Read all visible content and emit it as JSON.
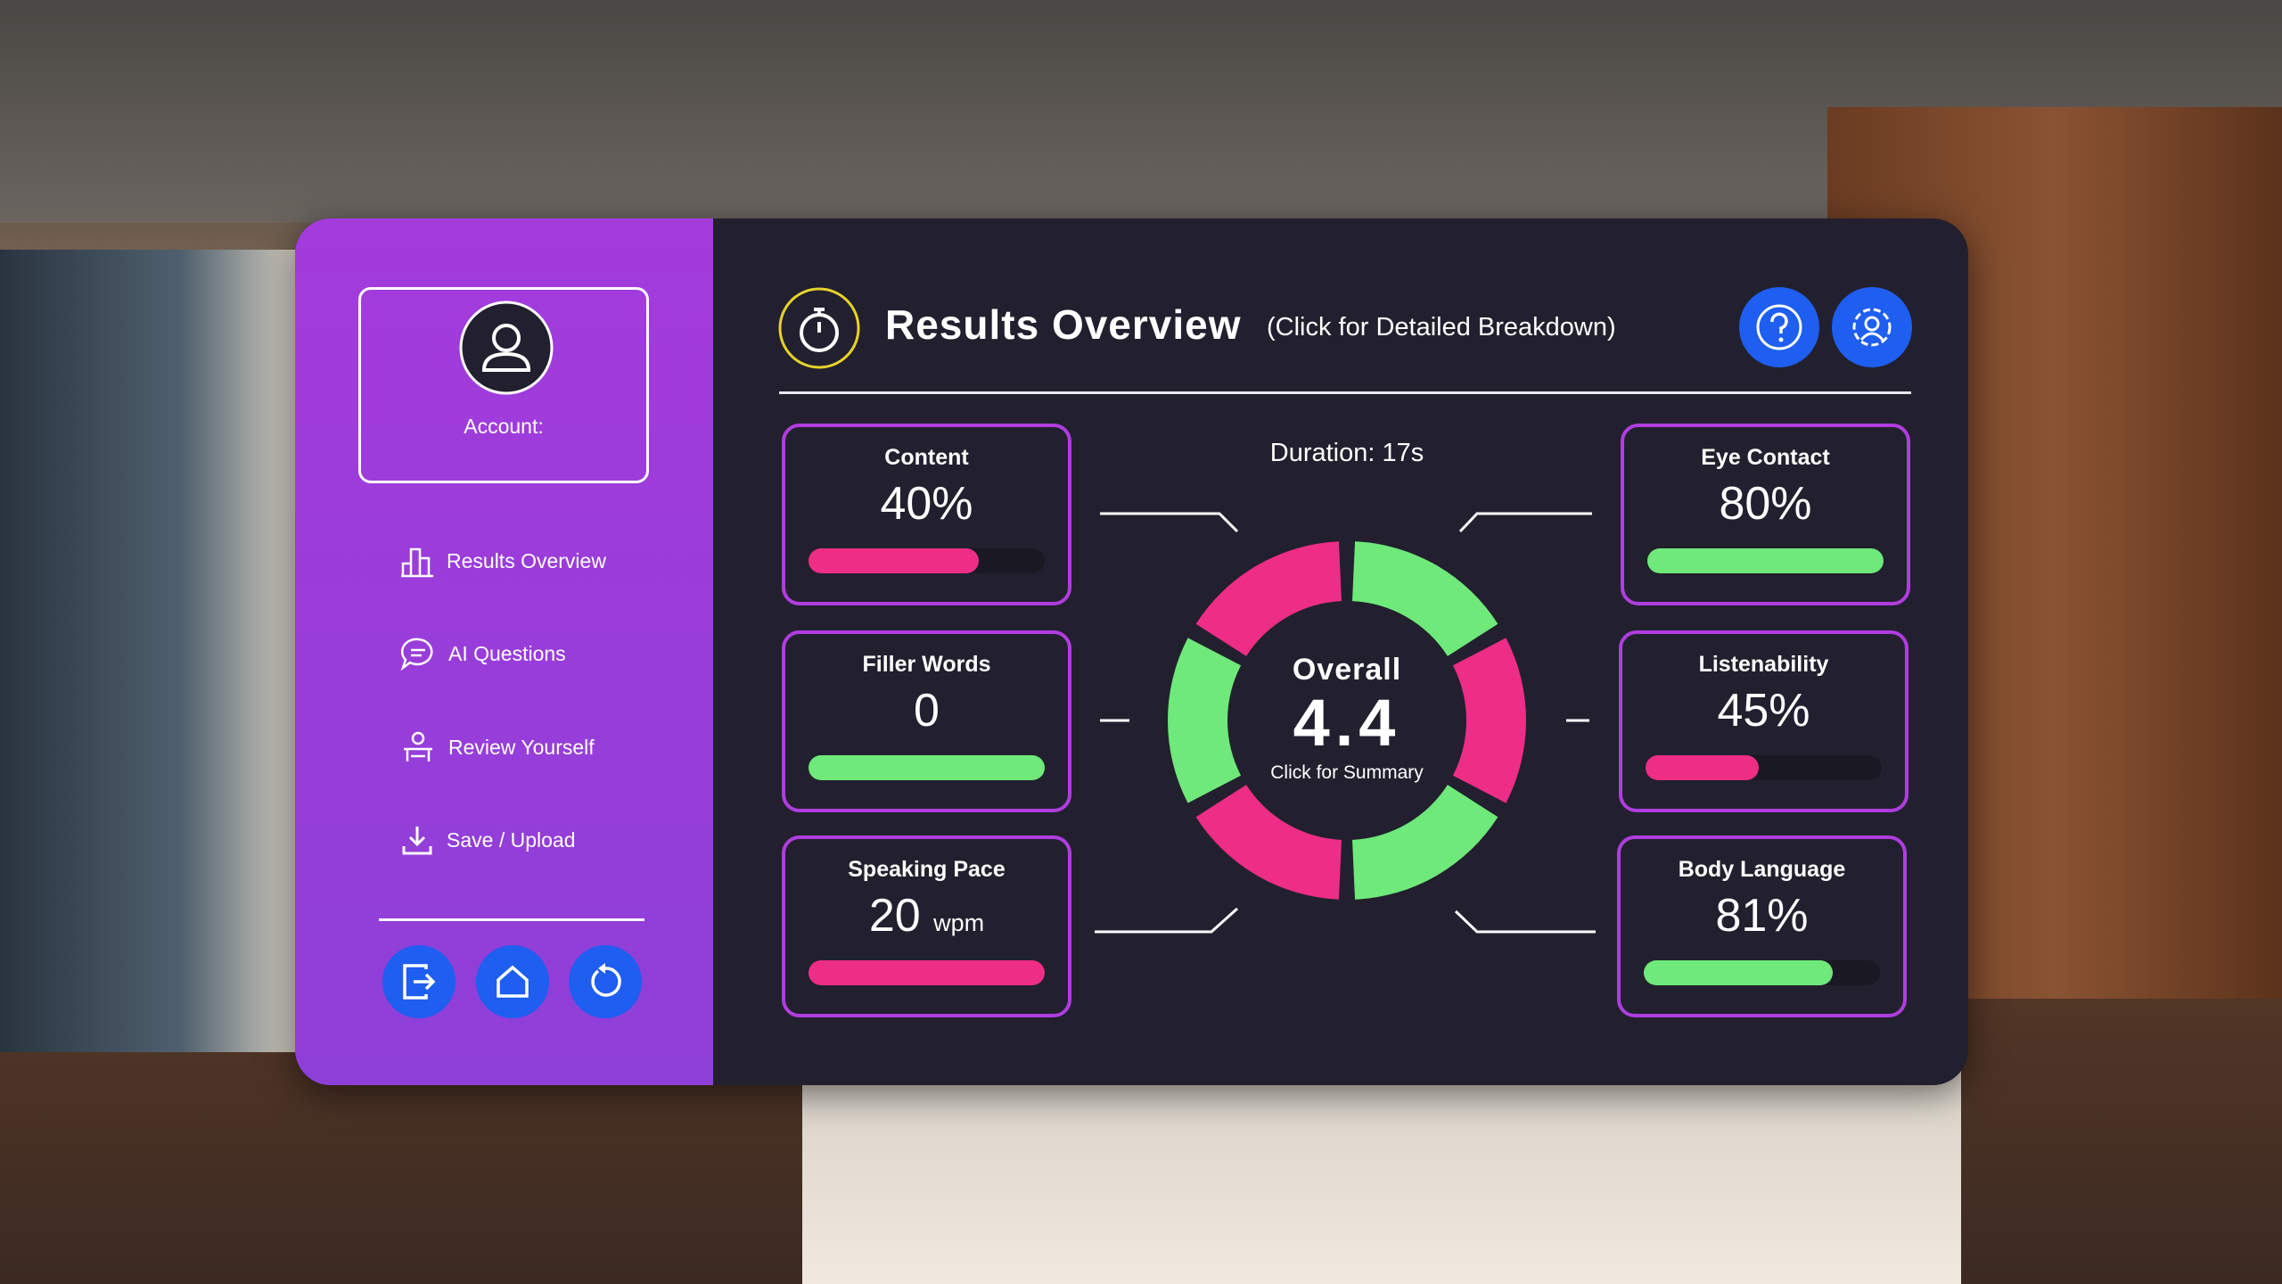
{
  "sidebar": {
    "account_label": "Account:",
    "menu": [
      "Results Overview",
      "AI Questions",
      "Review Yourself",
      "Save / Upload"
    ]
  },
  "header": {
    "title": "Results Overview",
    "subtitle": "(Click for Detailed Breakdown)"
  },
  "duration": "Duration: 17s",
  "overall": {
    "label": "Overall",
    "score": 4.4,
    "hint": "Click for Summary"
  },
  "metrics": [
    {
      "label": "Content",
      "value": "40%"
    },
    {
      "label": "Filler Words",
      "value": 0
    },
    {
      "label": "Speaking Pace",
      "value": 20,
      "unit": "wpm"
    },
    {
      "label": "Eye Contact",
      "value": "80%"
    },
    {
      "label": "Listenability",
      "value": "45%"
    },
    {
      "label": "Body Language",
      "value": "81%"
    }
  ]
}
